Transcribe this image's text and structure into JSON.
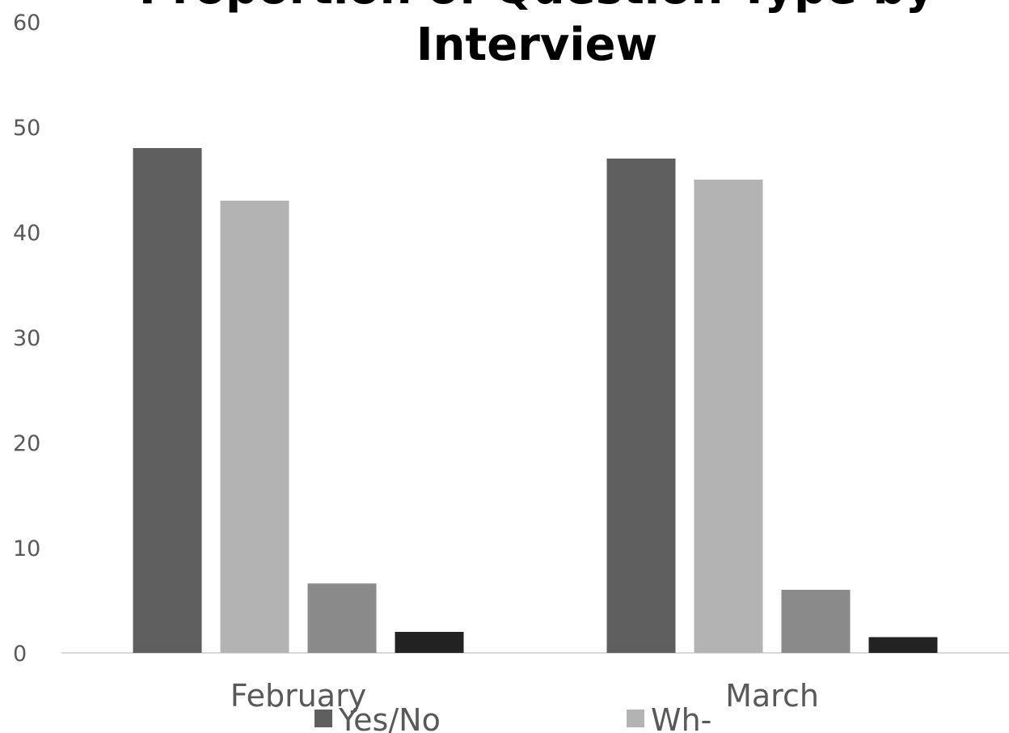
{
  "chart_data": {
    "type": "bar",
    "title_lines": [
      "Proportion of Question Type by",
      "Interview"
    ],
    "xlabel": "",
    "ylabel": "",
    "categories": [
      "February",
      "March"
    ],
    "ylim": [
      0,
      60
    ],
    "yticks": [
      0,
      10,
      20,
      30,
      40,
      50,
      60
    ],
    "grid": false,
    "legend_position": "bottom",
    "series": [
      {
        "name": "Yes/No",
        "values": [
          48,
          47
        ],
        "color": "#5f5f5f"
      },
      {
        "name": "Wh-",
        "values": [
          43,
          45
        ],
        "color": "#b3b3b3"
      },
      {
        "name": "",
        "values": [
          6.6,
          6
        ],
        "color": "#8a8a8a"
      },
      {
        "name": "",
        "values": [
          2,
          1.5
        ],
        "color": "#222222"
      }
    ]
  }
}
